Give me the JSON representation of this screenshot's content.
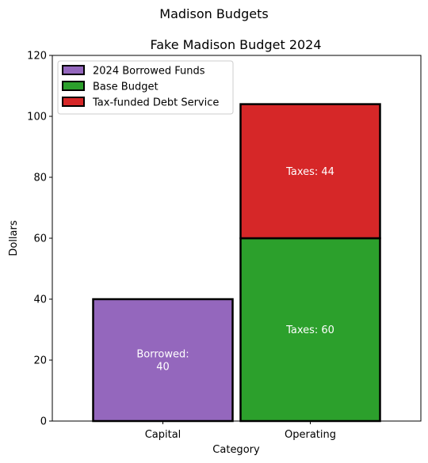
{
  "figure_title": "Madison Budgets",
  "chart_data": {
    "type": "bar",
    "stacked": true,
    "title": "Fake Madison Budget 2024",
    "xlabel": "Category",
    "ylabel": "Dollars",
    "ylim": [
      0,
      120
    ],
    "yticks": [
      0,
      20,
      40,
      60,
      80,
      100,
      120
    ],
    "categories": [
      "Capital",
      "Operating"
    ],
    "series": [
      {
        "name": "2024 Borrowed Funds",
        "color": "#9467bd",
        "values": [
          40,
          0
        ],
        "labels": [
          "Borrowed:\n40",
          ""
        ]
      },
      {
        "name": "Base Budget",
        "color": "#2ca02c",
        "values": [
          0,
          60
        ],
        "labels": [
          "",
          "Taxes: 60"
        ]
      },
      {
        "name": "Tax-funded Debt Service",
        "color": "#d62728",
        "values": [
          0,
          44
        ],
        "labels": [
          "",
          "Taxes: 44"
        ]
      }
    ],
    "legend_position": "top-left",
    "grid": false
  }
}
